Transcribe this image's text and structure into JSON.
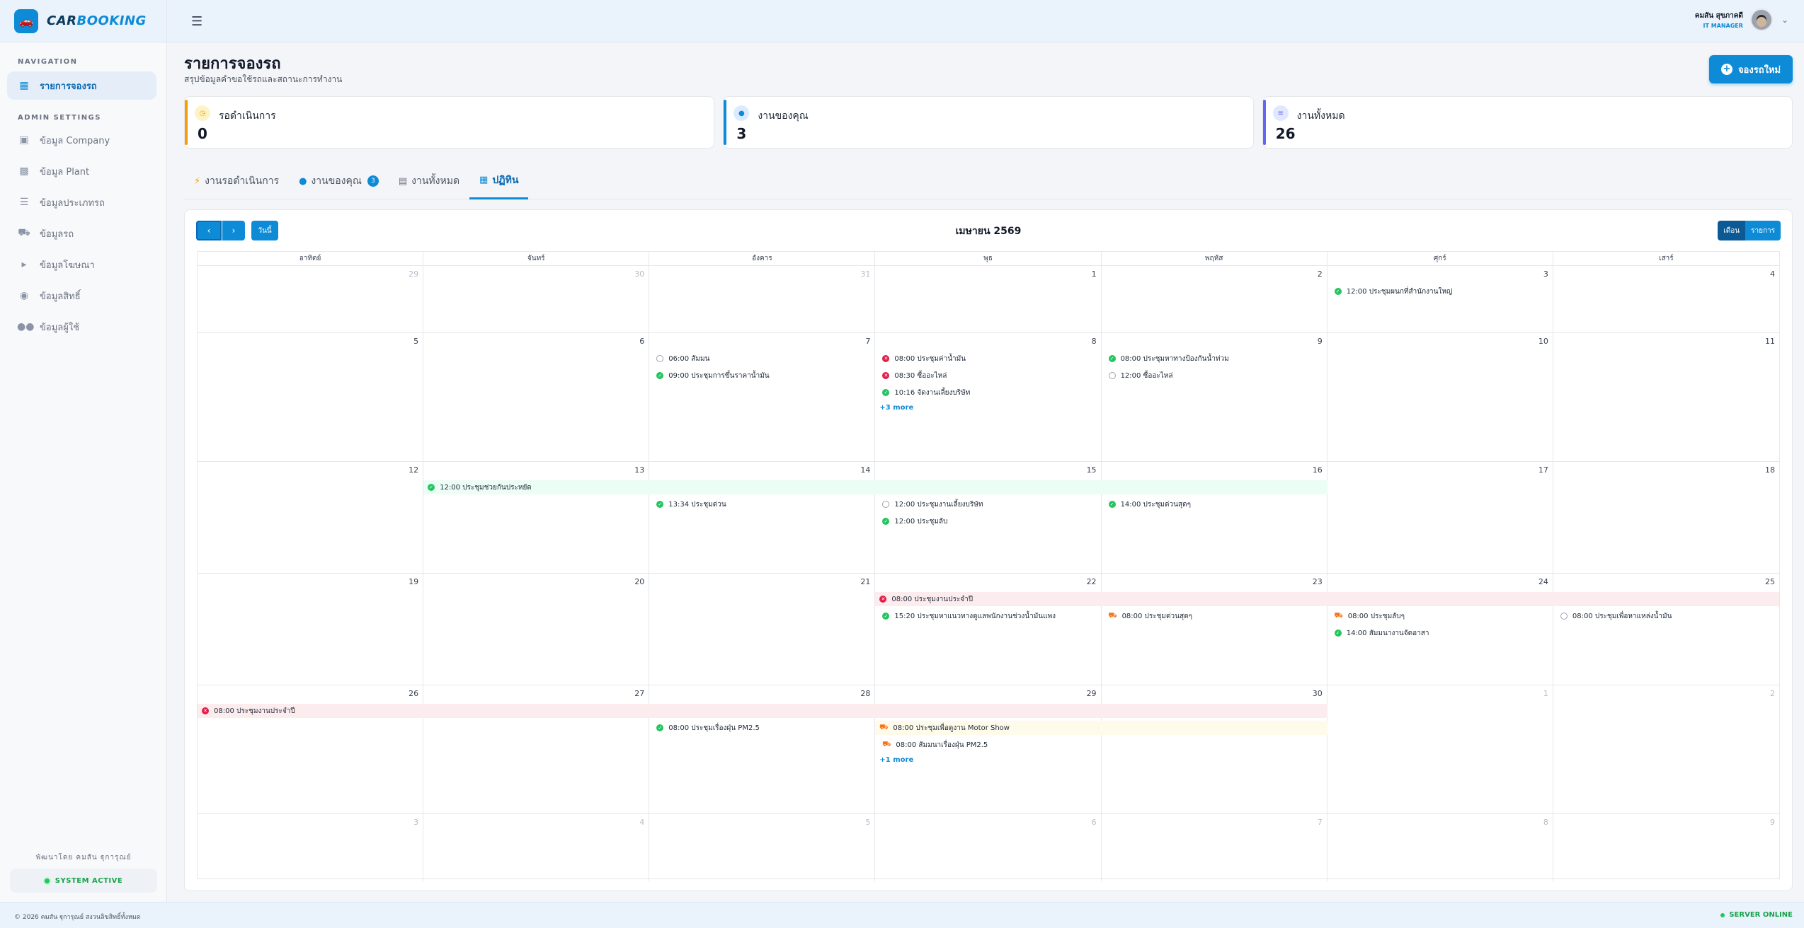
{
  "brand": {
    "part1": "CAR",
    "part2": "BOOKING",
    "icon": "car-icon"
  },
  "sidebar": {
    "nav_heading": "NAVIGATION",
    "nav_items": [
      {
        "label": "รายการจองรถ",
        "icon": "calendar-icon"
      }
    ],
    "admin_heading": "ADMIN SETTINGS",
    "admin_items": [
      {
        "label": "ข้อมูล Company",
        "icon": "building-icon"
      },
      {
        "label": "ข้อมูล Plant",
        "icon": "factory-icon"
      },
      {
        "label": "ข้อมูลประเภทรถ",
        "icon": "layers-icon"
      },
      {
        "label": "ข้อมูลรถ",
        "icon": "car-icon"
      },
      {
        "label": "ข้อมูลโฆษณา",
        "icon": "megaphone-icon"
      },
      {
        "label": "ข้อมูลสิทธิ์",
        "icon": "user-shield-icon"
      },
      {
        "label": "ข้อมูลผู้ใช้",
        "icon": "users-icon"
      }
    ],
    "credit": "พัฒนาโดย คมสัน ฐุการุณย์",
    "system_status": "SYSTEM ACTIVE"
  },
  "user": {
    "name": "คมสัน สุขภาคดี",
    "role": "IT MANAGER"
  },
  "page": {
    "title": "รายการจองรถ",
    "subtitle": "สรุปข้อมูลคำขอใช้รถและสถานะการทำงาน",
    "new_button": "จองรถใหม่"
  },
  "stats": [
    {
      "label": "รอดำเนินการ",
      "value": "0",
      "color": "#f59e0b",
      "icon": "clock-icon"
    },
    {
      "label": "งานของคุณ",
      "value": "3",
      "color": "#0d8bd6",
      "icon": "user-icon"
    },
    {
      "label": "งานทั้งหมด",
      "value": "26",
      "color": "#6366f1",
      "icon": "list-icon"
    }
  ],
  "tabs": [
    {
      "label": "งานรอดำเนินการ",
      "icon": "bolt-icon"
    },
    {
      "label": "งานของคุณ",
      "icon": "user-check-icon",
      "badge": "3"
    },
    {
      "label": "งานทั้งหมด",
      "icon": "table-icon"
    },
    {
      "label": "ปฏิทิน",
      "icon": "calendar-icon"
    }
  ],
  "calendar": {
    "title": "เมษายน 2569",
    "today_button": "วันนี้",
    "view_month": "เดือน",
    "view_list": "รายการ",
    "weekdays": [
      "อาทิตย์",
      "จันทร์",
      "อังคาร",
      "พุธ",
      "พฤหัส",
      "ศุกร์",
      "เสาร์"
    ],
    "weeks": [
      [
        "29",
        "30",
        "31",
        "1",
        "2",
        "3",
        "4"
      ],
      [
        "5",
        "6",
        "7",
        "8",
        "9",
        "10",
        "11"
      ],
      [
        "12",
        "13",
        "14",
        "15",
        "16",
        "17",
        "18"
      ],
      [
        "19",
        "20",
        "21",
        "22",
        "23",
        "24",
        "25"
      ],
      [
        "26",
        "27",
        "28",
        "29",
        "30",
        "1",
        "2"
      ],
      [
        "3",
        "4",
        "5",
        "6",
        "7",
        "8",
        "9"
      ]
    ],
    "events": [
      {
        "text": "12:00 ประชุมผนกที่สำนักงานใหญ่",
        "status": "approved"
      },
      {
        "text": "06:00 สัมมน",
        "status": "pending"
      },
      {
        "text": "09:00 ประชุมการขึ้นราคาน้ำมัน",
        "status": "approved"
      },
      {
        "text": "08:00 ประชุมค่าน้ำมัน",
        "status": "rejected"
      },
      {
        "text": "08:30 ซื้ออะไหล่",
        "status": "rejected"
      },
      {
        "text": "10:16 จัดงานเลี้ยงบริษัท",
        "status": "approved"
      },
      {
        "text": "+3 more",
        "status": "more"
      },
      {
        "text": "08:00 ประชุมหาทางป้องกันน้ำท่วม",
        "status": "approved"
      },
      {
        "text": "12:00 ซื้ออะไหล่",
        "status": "pending"
      },
      {
        "text": "12:00 ประชุมช่วยกันประหยัด",
        "status": "approved"
      },
      {
        "text": "13:34 ประชุมด่วน",
        "status": "approved"
      },
      {
        "text": "12:00 ประชุมงานเลี้ยงบริษัท",
        "status": "pending"
      },
      {
        "text": "12:00 ประชุมลับ",
        "status": "approved"
      },
      {
        "text": "14:00 ประชุมด่วนสุดๆ",
        "status": "approved"
      },
      {
        "text": "08:00 ประชุมงานประจำปี",
        "status": "rejected"
      },
      {
        "text": "15:20 ประชุมหาแนวทางดูแลพนักงานช่วงน้ำมันแพง",
        "status": "approved"
      },
      {
        "text": "08:00 ประชุมด่วนสุดๆ",
        "status": "in-use"
      },
      {
        "text": "08:00 ประชุมลับๆ",
        "status": "in-use"
      },
      {
        "text": "14:00 สัมมนางานจัดอาสา",
        "status": "approved"
      },
      {
        "text": "08:00 ประชุมเพื่อหาแหล่งน้ำมัน",
        "status": "pending"
      },
      {
        "text": "08:00 ประชุมงานประจำปี",
        "status": "rejected"
      },
      {
        "text": "08:00 ประชุมเรื่องฝุ่น PM2.5",
        "status": "approved"
      },
      {
        "text": "08:00 ประชุมเพื่อดูงาน Motor Show",
        "status": "in-use"
      },
      {
        "text": "08:00 สัมมนาเรื่องฝุ่น PM2.5",
        "status": "in-use"
      },
      {
        "text": "+1 more",
        "status": "more"
      }
    ]
  },
  "footer": {
    "copyright": "© 2026 คมสัน ฐุการุณย์ สงวนลิขสิทธิ์ทั้งหมด",
    "server": "SERVER ONLINE"
  }
}
